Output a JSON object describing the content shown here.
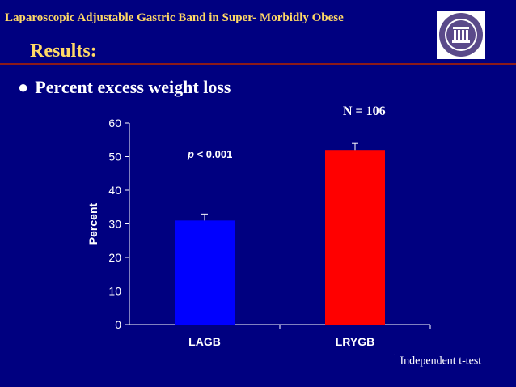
{
  "header": {
    "title": "Laparoscopic Adjustable Gastric Band in Super- Morbidly Obese"
  },
  "slide": {
    "title": "Results:",
    "bullet": "Percent excess weight loss",
    "n_label": "N = 106",
    "footnote_marker": "1",
    "footnote": "Independent t-test"
  },
  "colors": {
    "background": "#000080",
    "title": "#ffd966",
    "lagb": "#0000ff",
    "lrygb": "#ff0000",
    "divider": "#8b1a1a"
  },
  "chart_data": {
    "type": "bar",
    "categories": [
      "LAGB",
      "LRYGB"
    ],
    "values": [
      31,
      52
    ],
    "ylabel": "Percent",
    "ylim": [
      0,
      60
    ],
    "yticks": [
      0,
      10,
      20,
      30,
      40,
      50,
      60
    ],
    "error_bars": true,
    "annotation": "p  < 0.001",
    "grid": false
  }
}
